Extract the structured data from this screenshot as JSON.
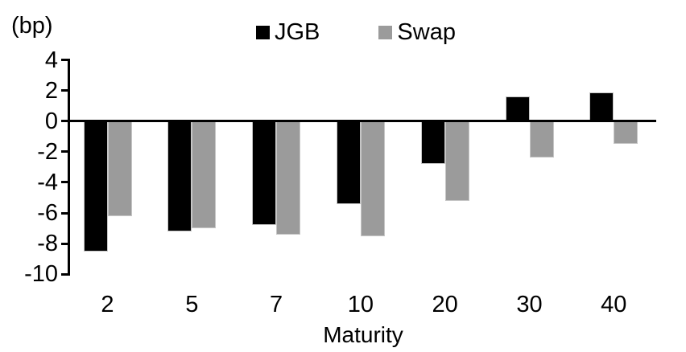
{
  "chart_data": {
    "type": "bar",
    "title": "",
    "ylabel": "(bp)",
    "xlabel": "Maturity",
    "categories": [
      "2",
      "5",
      "7",
      "10",
      "20",
      "30",
      "40"
    ],
    "series": [
      {
        "name": "JGB",
        "color": "#000000",
        "values": [
          -8.5,
          -7.2,
          -6.8,
          -5.4,
          -2.8,
          1.6,
          1.9
        ]
      },
      {
        "name": "Swap",
        "color": "#9b9b9b",
        "values": [
          -6.2,
          -7.0,
          -7.4,
          -7.5,
          -5.2,
          -2.4,
          -1.5
        ]
      }
    ],
    "yticks": [
      4,
      2,
      0,
      -2,
      -4,
      -6,
      -8,
      -10
    ],
    "ylim": [
      -10,
      4
    ],
    "grid": false,
    "legend_position": "top-center",
    "axis_color": "#000000",
    "bar_border_color": "#c6c6c6",
    "background": "#ffffff"
  }
}
